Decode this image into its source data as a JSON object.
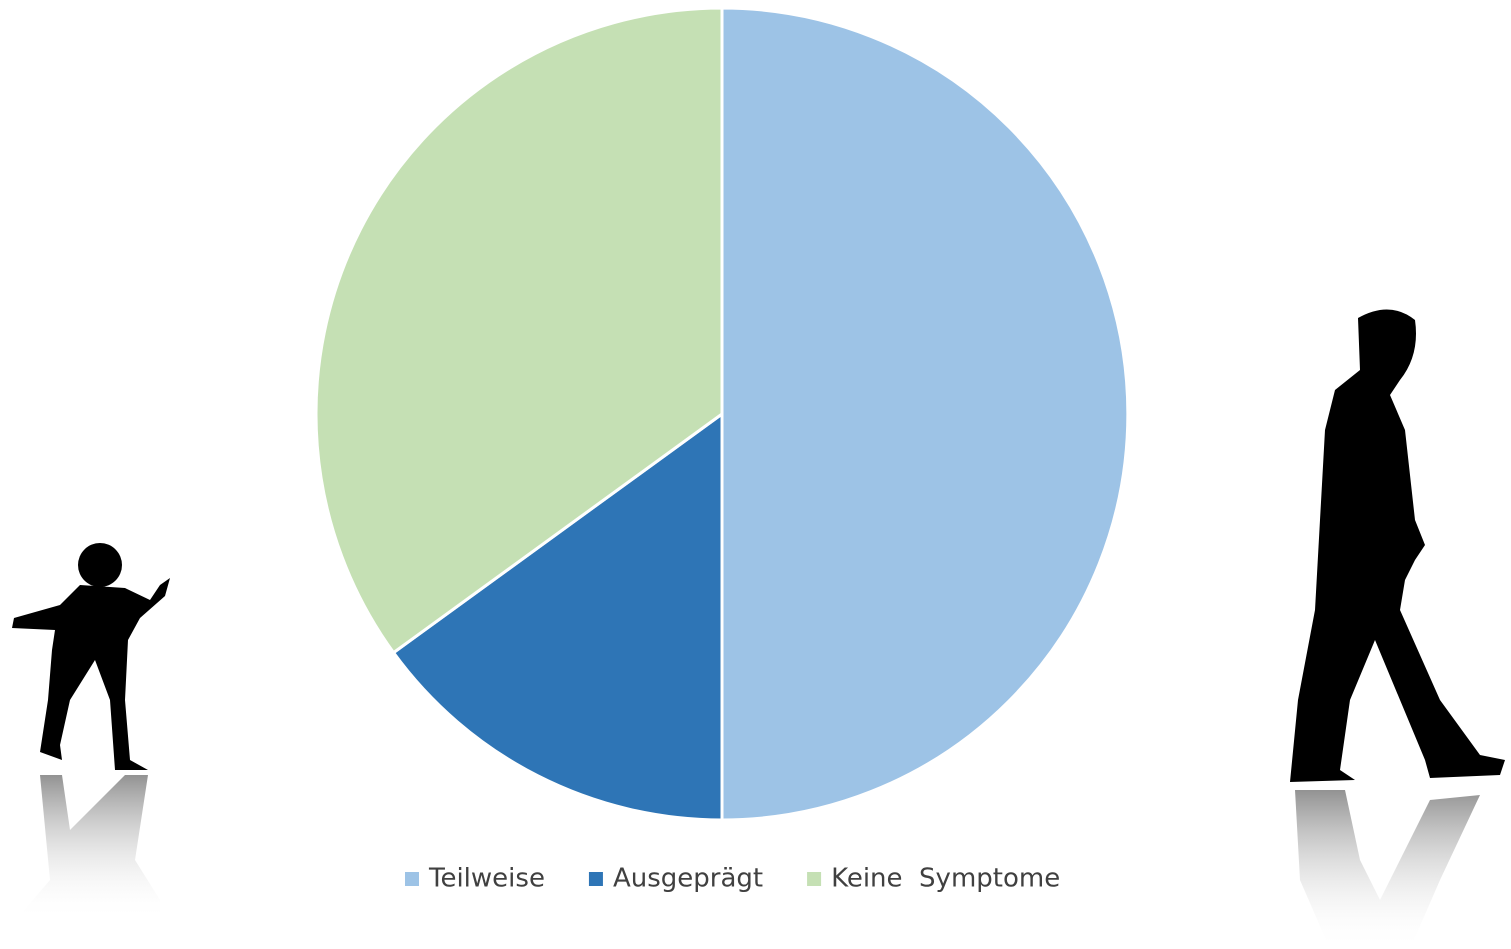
{
  "chart_data": {
    "type": "pie",
    "categories": [
      "Teilweise",
      "Ausgeprägt",
      "Keine  Symptome"
    ],
    "values": [
      50,
      15,
      35
    ],
    "colors": [
      "#9dc3e6",
      "#2e75b6",
      "#c5e0b4"
    ],
    "legend": "bottom"
  }
}
